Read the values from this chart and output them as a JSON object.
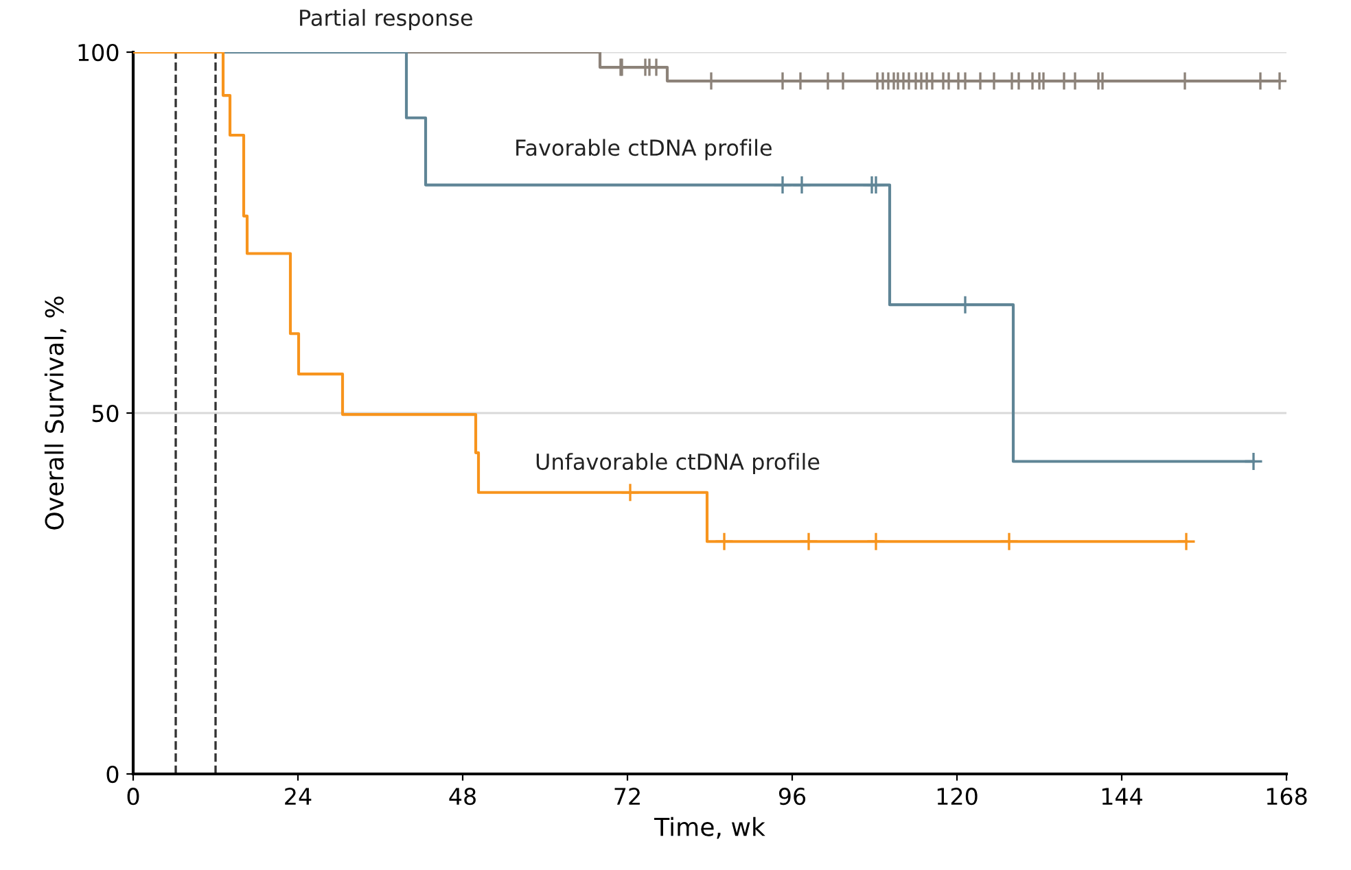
{
  "chart_data": {
    "type": "step",
    "xlabel": "Time, wk",
    "ylabel": "Overall Survival, %",
    "xlim": [
      0,
      168
    ],
    "xticks": [
      0,
      24,
      48,
      72,
      96,
      120,
      144,
      168
    ],
    "ylim": [
      0,
      100
    ],
    "yticks": [
      0,
      50,
      100
    ],
    "grid": "y",
    "line_style": "solid",
    "ref_lines": [
      {
        "axis": "x",
        "value": 6.2,
        "color": "#333333",
        "line_style": "dashed"
      },
      {
        "axis": "x",
        "value": 12,
        "color": "#333333",
        "line_style": "dashed"
      }
    ],
    "series": [
      {
        "name": "Partial response",
        "color": "#8c8279",
        "x": [
          0,
          68,
          77.8,
          167
        ],
        "values": [
          100,
          97.9,
          96,
          96
        ]
      },
      {
        "name": "Favorable ctDNA profile",
        "color": "#5f8596",
        "x": [
          0,
          39.8,
          42.6,
          110.2,
          128.2,
          163.2
        ],
        "values": [
          100,
          90.9,
          81.6,
          65,
          43.3,
          43.3
        ]
      },
      {
        "name": "Unfavorable ctDNA profile",
        "color": "#f7941d",
        "x": [
          0,
          13.1,
          14.1,
          16.1,
          16.6,
          22.9,
          24.1,
          30.5,
          49.9,
          50.3,
          83.6,
          153.4
        ],
        "values": [
          100,
          94,
          88.5,
          77.3,
          72.1,
          61,
          55.4,
          49.8,
          44.5,
          39,
          32.2,
          32.2
        ]
      },
      {
        "type": "scatter",
        "marker": "cross",
        "color": "#8c8279",
        "x": [
          71,
          71.2,
          74.6,
          75.2,
          76.2,
          84.2,
          94.6,
          97.2,
          101.2,
          103.4,
          108.4,
          109.2,
          110,
          110.8,
          111.4,
          112.2,
          113,
          114,
          114.8,
          115.6,
          116.4,
          118,
          118.8,
          120.2,
          121.2,
          123.4,
          125.4,
          128,
          129,
          131,
          132,
          132.6,
          135.6,
          137.2,
          140.6,
          141.2,
          153.2,
          164.2,
          167
        ],
        "values": [
          97.9,
          97.9,
          97.9,
          97.9,
          97.9,
          96,
          96,
          96,
          96,
          96,
          96,
          96,
          96,
          96,
          96,
          96,
          96,
          96,
          96,
          96,
          96,
          96,
          96,
          96,
          96,
          96,
          96,
          96,
          96,
          96,
          96,
          96,
          96,
          96,
          96,
          96,
          96,
          96,
          96
        ]
      },
      {
        "type": "scatter",
        "marker": "cross",
        "color": "#5f8596",
        "x": [
          94.6,
          97.4,
          107.6,
          108.2,
          121.2,
          163.2
        ],
        "values": [
          81.6,
          81.6,
          81.6,
          81.6,
          65,
          43.3
        ]
      },
      {
        "type": "scatter",
        "marker": "cross",
        "color": "#f7941d",
        "x": [
          72.4,
          86.1,
          98.4,
          108.2,
          127.6,
          153.4
        ],
        "values": [
          39,
          32.2,
          32.2,
          32.2,
          32.2,
          32.2
        ]
      }
    ]
  }
}
